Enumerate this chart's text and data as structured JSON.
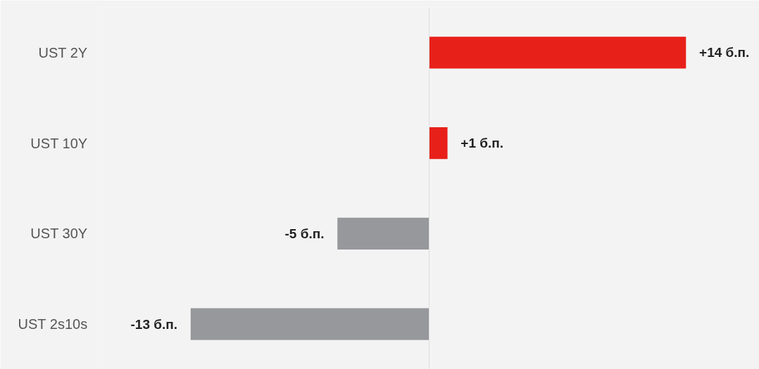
{
  "chart_data": {
    "type": "bar",
    "orientation": "horizontal",
    "categories": [
      "UST 2Y",
      "UST 10Y",
      "UST 30Y",
      "UST 2s10s"
    ],
    "values": [
      14,
      1,
      -5,
      -13
    ],
    "colors": [
      "#e8201a",
      "#e8201a",
      "#96989c",
      "#96989c"
    ],
    "value_labels": [
      "+14 б.п.",
      "+1 б.п.",
      "-5 б.п.",
      "-13 б.п."
    ],
    "xlim": [
      -18,
      18
    ]
  }
}
